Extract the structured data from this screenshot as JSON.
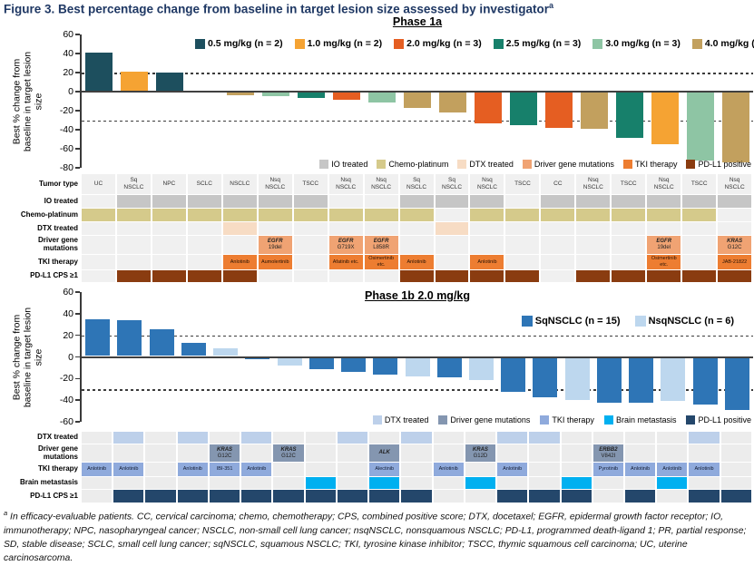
{
  "title": {
    "text": "Figure 3. Best percentage change from baseline in target lesion size assessed by investigator",
    "sup": "a"
  },
  "footnote": {
    "sup": "a",
    "text": " In efficacy-evaluable patients. CC, cervical carcinoma; chemo, chemotherapy; CPS, combined positive score; DTX, docetaxel; EGFR, epidermal growth factor receptor; IO, immunotherapy; NPC, nasopharyngeal cancer; NSCLC, non-small cell lung cancer; nsqNSCLC, nonsquamous NSCLC; PD-L1, programmed death-ligand 1; PR, partial response; SD, stable disease; SCLC, small cell lung cancer; sqNSCLC, squamous NSCLC; TKI, tyrosine kinase inhibitor; TSCC, thymic squamous cell carcinoma; UC, uterine carcinosarcoma."
  },
  "chart_data": [
    {
      "id": "phase1a",
      "type": "bar",
      "title": "Phase 1a",
      "ylabel": "Best % change from baseline in target lesion size",
      "y_label_lines": [
        "Best % change from",
        "baseline in target lesion",
        "size"
      ],
      "ylim": [
        -80,
        60
      ],
      "yticks": [
        60,
        40,
        20,
        0,
        -20,
        -40,
        -60,
        -80
      ],
      "reference_lines": [
        20,
        -30
      ],
      "legend_position": "top-inside",
      "series": [
        {
          "name": "0.5 mg/kg (n = 2)",
          "color": "#1d4f5e"
        },
        {
          "name": "1.0 mg/kg (n = 2)",
          "color": "#f5a333"
        },
        {
          "name": "2.0 mg/kg (n = 3)",
          "color": "#e55e22"
        },
        {
          "name": "2.5 mg/kg (n = 3)",
          "color": "#17806b"
        },
        {
          "name": "3.0 mg/kg (n = 3)",
          "color": "#8ec5a4"
        },
        {
          "name": "4.0 mg/kg (n = 6)",
          "color": "#c2a05e"
        }
      ],
      "bars": [
        {
          "tumor": "UC",
          "series": 0,
          "value": 41
        },
        {
          "tumor": "Sq NSCLC",
          "series": 1,
          "value": 21
        },
        {
          "tumor": "NPC",
          "series": 0,
          "value": 20
        },
        {
          "tumor": "SCLC",
          "series": 5,
          "value": 0
        },
        {
          "tumor": "NSCLC",
          "series": 5,
          "value": -4
        },
        {
          "tumor": "Nsq NSCLC",
          "series": 4,
          "value": -5
        },
        {
          "tumor": "TSCC",
          "series": 3,
          "value": -7
        },
        {
          "tumor": "Nsq NSCLC",
          "series": 2,
          "value": -9
        },
        {
          "tumor": "Nsq NSCLC",
          "series": 4,
          "value": -11
        },
        {
          "tumor": "Sq NSCLC",
          "series": 5,
          "value": -17
        },
        {
          "tumor": "Sq NSCLC",
          "series": 5,
          "value": -22
        },
        {
          "tumor": "Nsq NSCLC",
          "series": 2,
          "value": -33
        },
        {
          "tumor": "TSCC",
          "series": 3,
          "value": -35
        },
        {
          "tumor": "CC",
          "series": 2,
          "value": -38
        },
        {
          "tumor": "Nsq NSCLC",
          "series": 5,
          "value": -39
        },
        {
          "tumor": "TSCC",
          "series": 3,
          "value": -49
        },
        {
          "tumor": "Nsq NSCLC",
          "series": 1,
          "value": -55
        },
        {
          "tumor": "TSCC",
          "series": 4,
          "value": -72
        },
        {
          "tumor": "Nsq NSCLC",
          "series": 5,
          "value": -74
        }
      ]
    },
    {
      "id": "phase1b",
      "type": "bar",
      "title": "Phase 1b 2.0 mg/kg",
      "ylabel": "Best % change from baseline in target lesion size",
      "y_label_lines": [
        "Best % change from",
        "baseline in target lesion",
        "size"
      ],
      "ylim": [
        -60,
        60
      ],
      "yticks": [
        60,
        40,
        20,
        0,
        -20,
        -40,
        -60
      ],
      "reference_lines": [
        20,
        -30
      ],
      "legend_position": "top-right-inside",
      "series": [
        {
          "name": "SqNSCLC (n = 15)",
          "color": "#2e75b6"
        },
        {
          "name": "NsqNSCLC (n = 6)",
          "color": "#bdd7ee"
        }
      ],
      "bars": [
        {
          "series": 0,
          "value": 35
        },
        {
          "series": 0,
          "value": 34
        },
        {
          "series": 0,
          "value": 26
        },
        {
          "series": 0,
          "value": 13
        },
        {
          "series": 1,
          "value": 8
        },
        {
          "series": 0,
          "value": -2
        },
        {
          "series": 1,
          "value": -8
        },
        {
          "series": 0,
          "value": -11
        },
        {
          "series": 0,
          "value": -14
        },
        {
          "series": 0,
          "value": -16
        },
        {
          "series": 1,
          "value": -18
        },
        {
          "series": 0,
          "value": -19
        },
        {
          "series": 1,
          "value": -21
        },
        {
          "series": 0,
          "value": -32
        },
        {
          "series": 0,
          "value": -37
        },
        {
          "series": 1,
          "value": -40
        },
        {
          "series": 0,
          "value": -42
        },
        {
          "series": 0,
          "value": -42
        },
        {
          "series": 1,
          "value": -41
        },
        {
          "series": 0,
          "value": -44
        },
        {
          "series": 0,
          "value": -49
        }
      ]
    }
  ],
  "phase1a_annotation_legend": [
    {
      "label": "IO treated",
      "color": "#c6c6c6"
    },
    {
      "label": "Chemo-platinum",
      "color": "#d5ca8b"
    },
    {
      "label": "DTX treated",
      "color": "#f7dcc4"
    },
    {
      "label": "Driver gene mutations",
      "color": "#f0a373"
    },
    {
      "label": "TKI therapy",
      "color": "#ed7d31"
    },
    {
      "label": "PD-L1 positive",
      "color": "#8a3c10"
    }
  ],
  "phase1b_annotation_legend": [
    {
      "label": "DTX treated",
      "color": "#bdd0ea"
    },
    {
      "label": "Driver gene mutations",
      "color": "#8496b0"
    },
    {
      "label": "TKI therapy",
      "color": "#8faadc"
    },
    {
      "label": "Brain metastasis",
      "color": "#00b0f0"
    },
    {
      "label": "PD-L1 positive",
      "color": "#24476b"
    }
  ],
  "phase1a_grid": {
    "columns": 19,
    "empty_color": "#f0f0f0",
    "rows": [
      {
        "label": "Tumor type",
        "type": "text",
        "values": [
          "UC",
          "Sq\nNSCLC",
          "NPC",
          "SCLC",
          "NSCLC",
          "Nsq\nNSCLC",
          "TSCC",
          "Nsq\nNSCLC",
          "Nsq\nNSCLC",
          "Sq\nNSCLC",
          "Sq\nNSCLC",
          "Nsq\nNSCLC",
          "TSCC",
          "CC",
          "Nsq\nNSCLC",
          "TSCC",
          "Nsq\nNSCLC",
          "TSCC",
          "Nsq\nNSCLC"
        ]
      },
      {
        "label": "IO treated",
        "type": "fill",
        "color": "#c6c6c6",
        "filled": [
          2,
          3,
          4,
          5,
          6,
          7,
          10,
          11,
          12,
          14,
          15,
          16,
          17,
          18,
          19
        ]
      },
      {
        "label": "Chemo-platinum",
        "type": "fill",
        "color": "#d5ca8b",
        "filled": [
          1,
          2,
          3,
          4,
          5,
          6,
          7,
          8,
          9,
          10,
          12,
          13,
          14,
          15,
          16,
          17,
          18
        ]
      },
      {
        "label": "DTX treated",
        "type": "fill",
        "color": "#f7dcc4",
        "filled": [
          5,
          11
        ]
      },
      {
        "label": "Driver gene mutations",
        "type": "gene",
        "color": "#f0a373",
        "cells": [
          {
            "col": 6,
            "gene": "EGFR",
            "variant": "19del"
          },
          {
            "col": 8,
            "gene": "EGFR",
            "variant": "G719X"
          },
          {
            "col": 9,
            "gene": "EGFR",
            "variant": "L858R"
          },
          {
            "col": 17,
            "gene": "EGFR",
            "variant": "19del"
          },
          {
            "col": 19,
            "gene": "KRAS",
            "variant": "G12C"
          }
        ]
      },
      {
        "label": "TKI therapy",
        "type": "textfill",
        "color": "#ed7d31",
        "text_color": "#241104",
        "cells": [
          {
            "col": 5,
            "label": "Anlotinib"
          },
          {
            "col": 6,
            "label": "Aumolertinib"
          },
          {
            "col": 8,
            "label": "Afatinib etc."
          },
          {
            "col": 9,
            "label": "Osimertinib etc."
          },
          {
            "col": 10,
            "label": "Anlotinib"
          },
          {
            "col": 12,
            "label": "Anlotinib"
          },
          {
            "col": 17,
            "label": "Osimertinib etc."
          },
          {
            "col": 19,
            "label": "JAB-21822"
          }
        ]
      },
      {
        "label": "PD-L1 CPS ≥1",
        "type": "fill",
        "color": "#8a3c10",
        "filled": [
          2,
          3,
          4,
          5,
          10,
          11,
          12,
          13,
          15,
          16,
          17,
          18,
          19
        ]
      }
    ]
  },
  "phase1b_grid": {
    "columns": 21,
    "empty_color": "#ececec",
    "rows": [
      {
        "label": "DTX treated",
        "type": "fill",
        "color": "#bdd0ea",
        "filled": [
          2,
          4,
          6,
          9,
          11,
          14,
          15,
          20
        ]
      },
      {
        "label": "Driver gene mutations",
        "type": "gene",
        "color": "#8496b0",
        "cells": [
          {
            "col": 5,
            "gene": "KRAS",
            "variant": "G12C"
          },
          {
            "col": 7,
            "gene": "KRAS",
            "variant": "G12C"
          },
          {
            "col": 10,
            "gene": "ALK",
            "variant": ""
          },
          {
            "col": 13,
            "gene": "KRAS",
            "variant": "G12D"
          },
          {
            "col": 17,
            "gene": "ERBB2",
            "variant": "V842I"
          }
        ]
      },
      {
        "label": "TKI therapy",
        "type": "textfill",
        "color": "#8faadc",
        "text_color": "#121c33",
        "cells": [
          {
            "col": 1,
            "label": "Anlotinib"
          },
          {
            "col": 2,
            "label": "Anlotinib"
          },
          {
            "col": 4,
            "label": "Anlotinib"
          },
          {
            "col": 5,
            "label": "IBI-351"
          },
          {
            "col": 6,
            "label": "Anlotinib"
          },
          {
            "col": 10,
            "label": "Alectinib"
          },
          {
            "col": 12,
            "label": "Anlotinib"
          },
          {
            "col": 14,
            "label": "Anlotinib"
          },
          {
            "col": 17,
            "label": "Pyrotinib"
          },
          {
            "col": 18,
            "label": "Anlotinib"
          },
          {
            "col": 19,
            "label": "Anlotinib"
          },
          {
            "col": 20,
            "label": "Anlotinib"
          }
        ]
      },
      {
        "label": "Brain metastasis",
        "type": "fill",
        "color": "#00b0f0",
        "filled": [
          8,
          10,
          13,
          16,
          19
        ]
      },
      {
        "label": "PD-L1 CPS ≥1",
        "type": "fill",
        "color": "#24476b",
        "filled": [
          2,
          3,
          4,
          5,
          6,
          7,
          8,
          9,
          10,
          11,
          14,
          15,
          16,
          18,
          20,
          21
        ]
      }
    ]
  }
}
